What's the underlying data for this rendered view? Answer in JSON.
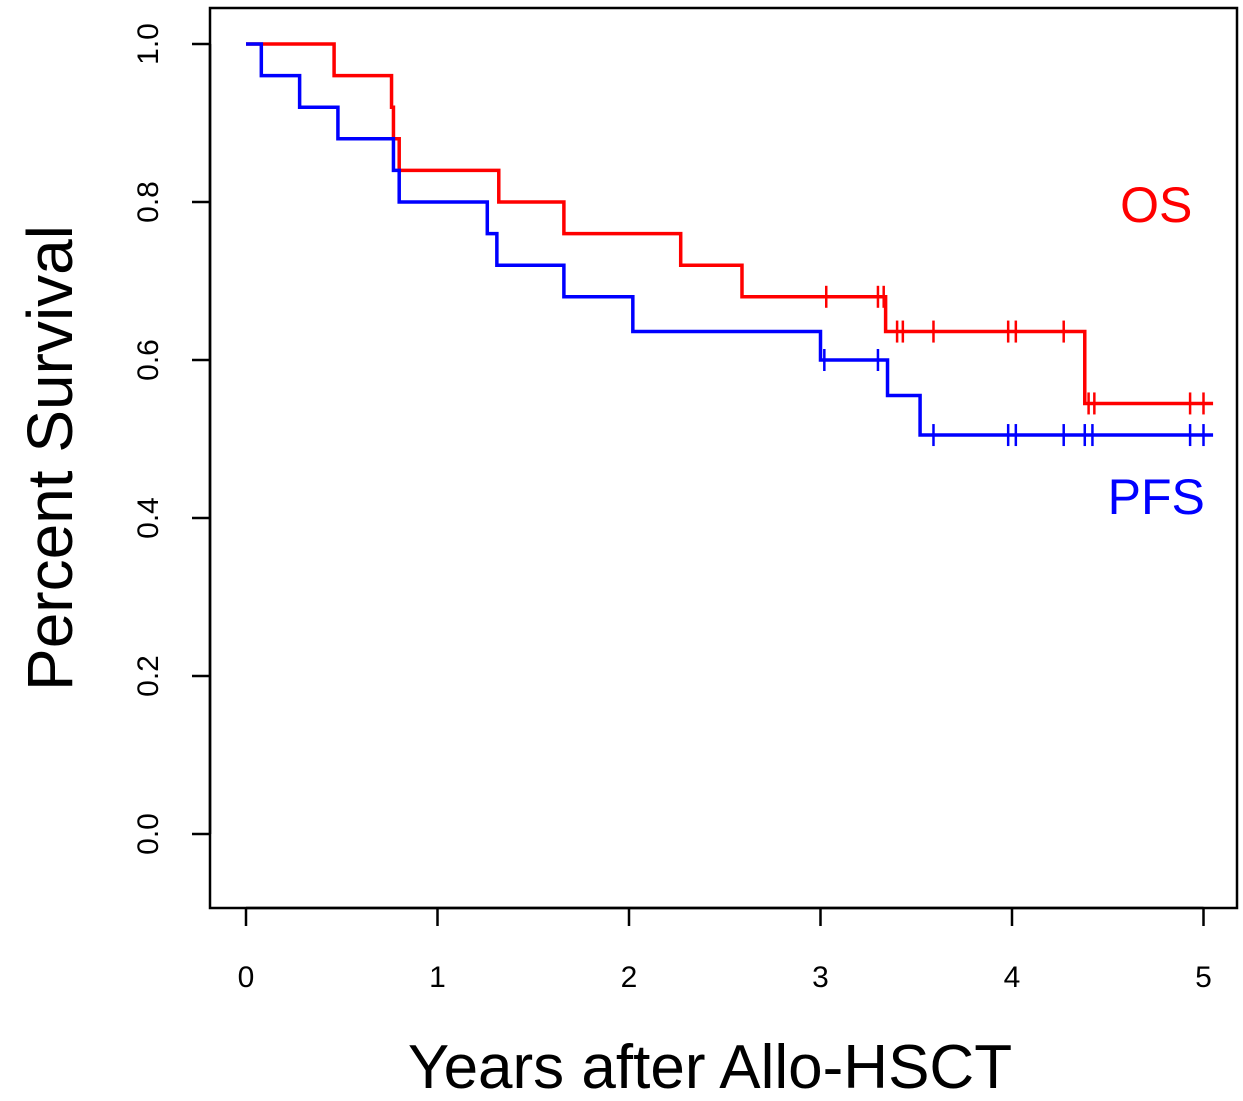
{
  "chart_data": {
    "type": "line",
    "title": "",
    "xlabel": "Years after Allo-HSCT",
    "ylabel": "Percent Survival",
    "xlim": [
      0,
      5
    ],
    "ylim": [
      0,
      1
    ],
    "xticks": [
      "0",
      "1",
      "2",
      "3",
      "4",
      "5"
    ],
    "yticks": [
      "0.0",
      "0.2",
      "0.4",
      "0.6",
      "0.8",
      "1.0"
    ],
    "grid": false,
    "legend": "none",
    "series": [
      {
        "name": "OS",
        "color": "#ff0000",
        "step": [
          [
            0,
            1.0
          ],
          [
            0.46,
            0.96
          ],
          [
            0.76,
            0.92
          ],
          [
            0.77,
            0.88
          ],
          [
            0.8,
            0.84
          ],
          [
            1.32,
            0.8
          ],
          [
            1.66,
            0.76
          ],
          [
            2.27,
            0.72
          ],
          [
            2.59,
            0.68
          ],
          [
            3.34,
            0.636
          ],
          [
            4.38,
            0.545
          ]
        ],
        "end": 5.05,
        "censored": [
          [
            3.03,
            0.68
          ],
          [
            3.3,
            0.68
          ],
          [
            3.33,
            0.68
          ],
          [
            3.4,
            0.636
          ],
          [
            3.43,
            0.636
          ],
          [
            3.59,
            0.636
          ],
          [
            3.98,
            0.636
          ],
          [
            4.02,
            0.636
          ],
          [
            4.27,
            0.636
          ],
          [
            4.4,
            0.545
          ],
          [
            4.43,
            0.545
          ],
          [
            4.93,
            0.545
          ],
          [
            5.0,
            0.545
          ]
        ]
      },
      {
        "name": "PFS",
        "color": "#0000ff",
        "step": [
          [
            0,
            1.0
          ],
          [
            0.08,
            0.96
          ],
          [
            0.28,
            0.92
          ],
          [
            0.48,
            0.88
          ],
          [
            0.77,
            0.84
          ],
          [
            0.8,
            0.8
          ],
          [
            1.26,
            0.76
          ],
          [
            1.31,
            0.72
          ],
          [
            1.66,
            0.68
          ],
          [
            2.02,
            0.636
          ],
          [
            3.0,
            0.6
          ],
          [
            3.35,
            0.555
          ],
          [
            3.52,
            0.505
          ]
        ],
        "end": 5.05,
        "censored": [
          [
            3.02,
            0.6
          ],
          [
            3.3,
            0.6
          ],
          [
            3.59,
            0.505
          ],
          [
            3.98,
            0.505
          ],
          [
            4.02,
            0.505
          ],
          [
            4.27,
            0.505
          ],
          [
            4.38,
            0.505
          ],
          [
            4.42,
            0.505
          ],
          [
            4.93,
            0.505
          ],
          [
            5.0,
            0.505
          ]
        ]
      }
    ],
    "annotations": [
      {
        "text": "OS",
        "color": "#ff0000",
        "x": 3.5,
        "y": 0.775
      },
      {
        "text": "PFS",
        "color": "#0000ff",
        "x": 3.5,
        "y": 0.405
      }
    ]
  }
}
